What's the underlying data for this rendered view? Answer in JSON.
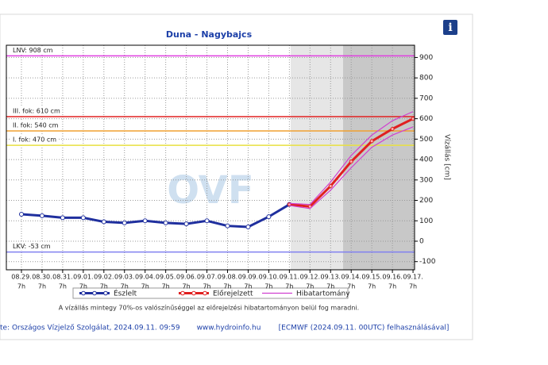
{
  "chart_data": {
    "type": "line",
    "title": "Duna - Nagybajcs",
    "y_label": "Vízállás [cm]",
    "watermark": "OVF",
    "categories": [
      "08.29.",
      "08.30.",
      "08.31.",
      "09.01.",
      "09.02.",
      "09.03.",
      "09.04.",
      "09.05.",
      "09.06.",
      "09.07.",
      "09.08.",
      "09.09.",
      "09.10.",
      "09.11.",
      "09.12.",
      "09.13.",
      "09.14.",
      "09.15.",
      "09.16.",
      "09.17."
    ],
    "x_sublabel": "7h",
    "series": [
      {
        "name": "Észlelt",
        "color": "#1f2f9e",
        "values": [
          132,
          125,
          115,
          115,
          95,
          90,
          100,
          90,
          85,
          100,
          75,
          70,
          120,
          180,
          null,
          null,
          null,
          null,
          null,
          null
        ]
      },
      {
        "name": "Előrejelzett",
        "color": "#e02020",
        "values": [
          null,
          null,
          null,
          null,
          null,
          null,
          null,
          null,
          null,
          null,
          null,
          null,
          null,
          180,
          170,
          270,
          390,
          490,
          550,
          600
        ]
      },
      {
        "name": "Hibatartomány",
        "color": "#d040d0",
        "values": [
          null,
          null,
          null,
          null,
          null,
          null,
          null,
          null,
          null,
          null,
          null,
          null,
          null,
          185,
          180,
          290,
          420,
          520,
          590,
          635
        ],
        "lower": [
          null,
          null,
          null,
          null,
          null,
          null,
          null,
          null,
          null,
          null,
          null,
          null,
          null,
          175,
          160,
          250,
          360,
          460,
          520,
          560
        ]
      }
    ],
    "thresholds": [
      {
        "label": "LNV: 908 cm",
        "value": 908,
        "color": "#e040e0"
      },
      {
        "label": "III. fok: 610 cm",
        "value": 610,
        "color": "#e02020"
      },
      {
        "label": "II. fok: 540 cm",
        "value": 540,
        "color": "#f0a030"
      },
      {
        "label": "I. fok: 470 cm",
        "value": 470,
        "color": "#e8e040"
      },
      {
        "label": "LKV: -53 cm",
        "value": -53,
        "color": "#8080f0"
      }
    ],
    "ylim": [
      -140,
      960
    ],
    "yticks": [
      -100,
      0,
      100,
      200,
      300,
      400,
      500,
      600,
      700,
      800,
      900
    ],
    "grid": true,
    "note": "A vízállás mintegy 70%-os valószínűséggel az előrejelzési hibatartományon belül fog maradni.",
    "footer": [
      "te: Országos Vízjelző Szolgálat, 2024.09.11. 09:59",
      "www.hydroinfo.hu",
      "[ECMWF (2024.09.11. 00UTC) felhasználásával]"
    ]
  }
}
